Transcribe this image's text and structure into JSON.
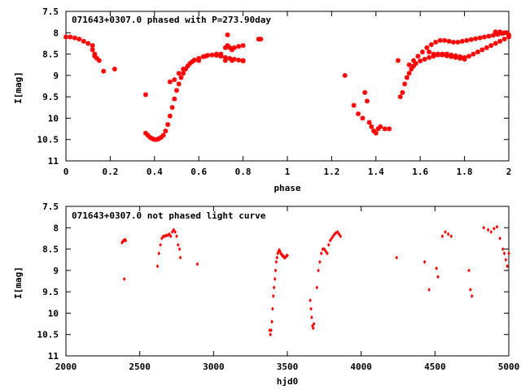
{
  "chart_data": [
    {
      "type": "scatter",
      "title": "071643+0307.0 phased with P=273.90day",
      "xlabel": "phase",
      "ylabel": "I[mag]",
      "xlim": [
        0,
        2
      ],
      "ylim": [
        7.5,
        11
      ],
      "y_inverted": true,
      "grid": false,
      "marker": "star",
      "color": "#ff0000",
      "xticks": [
        0,
        0.2,
        0.4,
        0.6,
        0.8,
        1,
        1.2,
        1.4,
        1.6,
        1.8,
        2
      ],
      "xtick_labels": [
        "0",
        "0.2",
        "0.4",
        "0.6",
        "0.8",
        "1",
        "1.2",
        "1.4",
        "1.6",
        "1.8",
        "2"
      ],
      "yticks": [
        7.5,
        8,
        8.5,
        9,
        9.5,
        10,
        10.5,
        11
      ],
      "ytick_labels": [
        "7.5",
        "8",
        "8.5",
        "9",
        "9.5",
        "10",
        "10.5",
        "11"
      ],
      "x": [
        0.0,
        0.02,
        0.04,
        0.06,
        0.08,
        0.1,
        0.12,
        0.13,
        0.14,
        0.15,
        0.12,
        0.13,
        0.17,
        0.22,
        0.36,
        0.37,
        0.38,
        0.39,
        0.4,
        0.41,
        0.42,
        0.43,
        0.44,
        0.45,
        0.46,
        0.47,
        0.48,
        0.49,
        0.5,
        0.51,
        0.52,
        0.53,
        0.54,
        0.55,
        0.56,
        0.57,
        0.58,
        0.6,
        0.62,
        0.64,
        0.66,
        0.68,
        0.7,
        0.72,
        0.74,
        0.76,
        0.78,
        0.8,
        0.36,
        0.47,
        0.49,
        0.51,
        0.53,
        0.6,
        0.63,
        0.68,
        0.7,
        0.72,
        0.73,
        0.74,
        0.75,
        0.76,
        0.78,
        0.8,
        0.73,
        0.72,
        0.75,
        0.8,
        0.87,
        0.88,
        1.26,
        1.3,
        1.32,
        1.34,
        1.35,
        1.36,
        1.37,
        1.38,
        1.39,
        1.4,
        1.41,
        1.42,
        1.44,
        1.46,
        1.5,
        1.51,
        1.52,
        1.53,
        1.54,
        1.55,
        1.56,
        1.57,
        1.58,
        1.6,
        1.62,
        1.64,
        1.66,
        1.68,
        1.7,
        1.72,
        1.74,
        1.76,
        1.78,
        1.8,
        1.55,
        1.57,
        1.59,
        1.61,
        1.63,
        1.65,
        1.67,
        1.69,
        1.71,
        1.73,
        1.75,
        1.77,
        1.79,
        1.81,
        1.83,
        1.85,
        1.87,
        1.89,
        1.91,
        1.93,
        1.95,
        1.97,
        1.99,
        1.64,
        1.66,
        1.68,
        1.7,
        1.72,
        1.74,
        1.76,
        1.78,
        1.8,
        1.82,
        1.84,
        1.86,
        1.88,
        1.9,
        1.92,
        1.94,
        1.96,
        1.98,
        2.0,
        1.94,
        1.96,
        1.98,
        2.0
      ],
      "y": [
        8.1,
        8.1,
        8.12,
        8.15,
        8.2,
        8.25,
        8.3,
        8.5,
        8.6,
        8.65,
        8.4,
        8.55,
        8.9,
        8.85,
        10.35,
        10.4,
        10.45,
        10.48,
        10.5,
        10.5,
        10.48,
        10.45,
        10.4,
        10.3,
        10.15,
        9.95,
        9.75,
        9.55,
        9.35,
        9.2,
        9.05,
        8.95,
        8.85,
        8.78,
        8.72,
        8.68,
        8.64,
        8.6,
        8.56,
        8.53,
        8.52,
        8.53,
        8.55,
        8.58,
        8.6,
        8.62,
        8.64,
        8.66,
        9.45,
        9.15,
        9.1,
        8.95,
        8.85,
        8.65,
        8.55,
        8.5,
        8.5,
        8.35,
        8.3,
        8.35,
        8.4,
        8.35,
        8.32,
        8.3,
        8.05,
        8.65,
        8.65,
        8.65,
        8.15,
        8.15,
        9.0,
        9.7,
        9.9,
        10.0,
        9.4,
        9.6,
        10.1,
        10.2,
        10.3,
        10.35,
        10.25,
        10.2,
        10.25,
        10.25,
        8.65,
        9.5,
        9.4,
        9.2,
        9.05,
        8.95,
        8.85,
        8.78,
        8.72,
        8.66,
        8.62,
        8.58,
        8.55,
        8.52,
        8.5,
        8.5,
        8.52,
        8.54,
        8.56,
        8.58,
        8.75,
        8.65,
        8.55,
        8.45,
        8.35,
        8.28,
        8.22,
        8.18,
        8.18,
        8.2,
        8.22,
        8.22,
        8.2,
        8.18,
        8.16,
        8.14,
        8.12,
        8.1,
        8.08,
        8.06,
        8.04,
        8.02,
        8.0,
        8.45,
        8.5,
        8.5,
        8.52,
        8.54,
        8.56,
        8.58,
        8.6,
        8.62,
        8.55,
        8.5,
        8.45,
        8.4,
        8.35,
        8.3,
        8.25,
        8.2,
        8.15,
        8.1,
        7.98,
        7.98,
        8.0,
        8.05
      ]
    },
    {
      "type": "scatter",
      "title": "071643+0307.0 not phased light curve",
      "xlabel": "hjd0",
      "ylabel": "I[mag]",
      "xlim": [
        2000,
        5000
      ],
      "ylim": [
        7.5,
        11
      ],
      "y_inverted": true,
      "grid": false,
      "marker": "diamond",
      "color": "#ff0000",
      "xticks": [
        2000,
        2500,
        3000,
        3500,
        4000,
        4500,
        5000
      ],
      "xtick_labels": [
        "2000",
        "2500",
        "3000",
        "3500",
        "4000",
        "4500",
        "5000"
      ],
      "yticks": [
        7.5,
        8,
        8.5,
        9,
        9.5,
        10,
        10.5,
        11
      ],
      "ytick_labels": [
        "7.5",
        "8",
        "8.5",
        "9",
        "9.5",
        "10",
        "10.5",
        "11"
      ],
      "x": [
        2380,
        2385,
        2390,
        2395,
        2400,
        2405,
        2395,
        2620,
        2630,
        2640,
        2650,
        2660,
        2670,
        2680,
        2690,
        2700,
        2710,
        2720,
        2730,
        2740,
        2750,
        2760,
        2770,
        2775,
        2890,
        3380,
        3385,
        3390,
        3395,
        3400,
        3405,
        3410,
        3415,
        3420,
        3425,
        3430,
        3435,
        3440,
        3445,
        3450,
        3455,
        3460,
        3465,
        3470,
        3475,
        3480,
        3485,
        3490,
        3495,
        3500,
        3655,
        3660,
        3665,
        3670,
        3675,
        3680,
        3700,
        3710,
        3720,
        3730,
        3740,
        3750,
        3760,
        3770,
        3780,
        3790,
        3800,
        3810,
        3820,
        3830,
        3840,
        3850,
        3860,
        4240,
        4430,
        4460,
        4510,
        4520,
        4550,
        4570,
        4590,
        4610,
        4730,
        4740,
        4750,
        4830,
        4860,
        4880,
        4900,
        4920,
        4940,
        4960,
        4970,
        4980,
        4990,
        5000
      ],
      "y": [
        8.35,
        8.32,
        8.3,
        8.3,
        8.28,
        8.3,
        9.2,
        8.9,
        8.6,
        8.4,
        8.25,
        8.2,
        8.2,
        8.18,
        8.18,
        8.15,
        8.2,
        8.1,
        8.05,
        8.1,
        8.2,
        8.4,
        8.5,
        8.7,
        8.85,
        10.4,
        10.5,
        10.4,
        10.2,
        9.9,
        9.6,
        9.4,
        9.2,
        9.0,
        8.8,
        8.7,
        8.6,
        8.55,
        8.52,
        8.55,
        8.6,
        8.62,
        8.65,
        8.65,
        8.68,
        8.7,
        8.7,
        8.68,
        8.65,
        8.65,
        9.7,
        9.9,
        10.1,
        10.3,
        10.35,
        10.25,
        9.4,
        9.0,
        8.8,
        8.6,
        8.5,
        8.5,
        8.55,
        8.6,
        8.4,
        8.3,
        8.25,
        8.2,
        8.15,
        8.12,
        8.1,
        8.15,
        8.2,
        8.7,
        8.8,
        9.45,
        8.95,
        9.15,
        8.2,
        8.1,
        8.15,
        8.2,
        9.0,
        9.45,
        9.6,
        8.0,
        8.05,
        8.1,
        8.02,
        7.98,
        8.25,
        8.5,
        8.6,
        8.75,
        8.9,
        8.6
      ]
    }
  ]
}
